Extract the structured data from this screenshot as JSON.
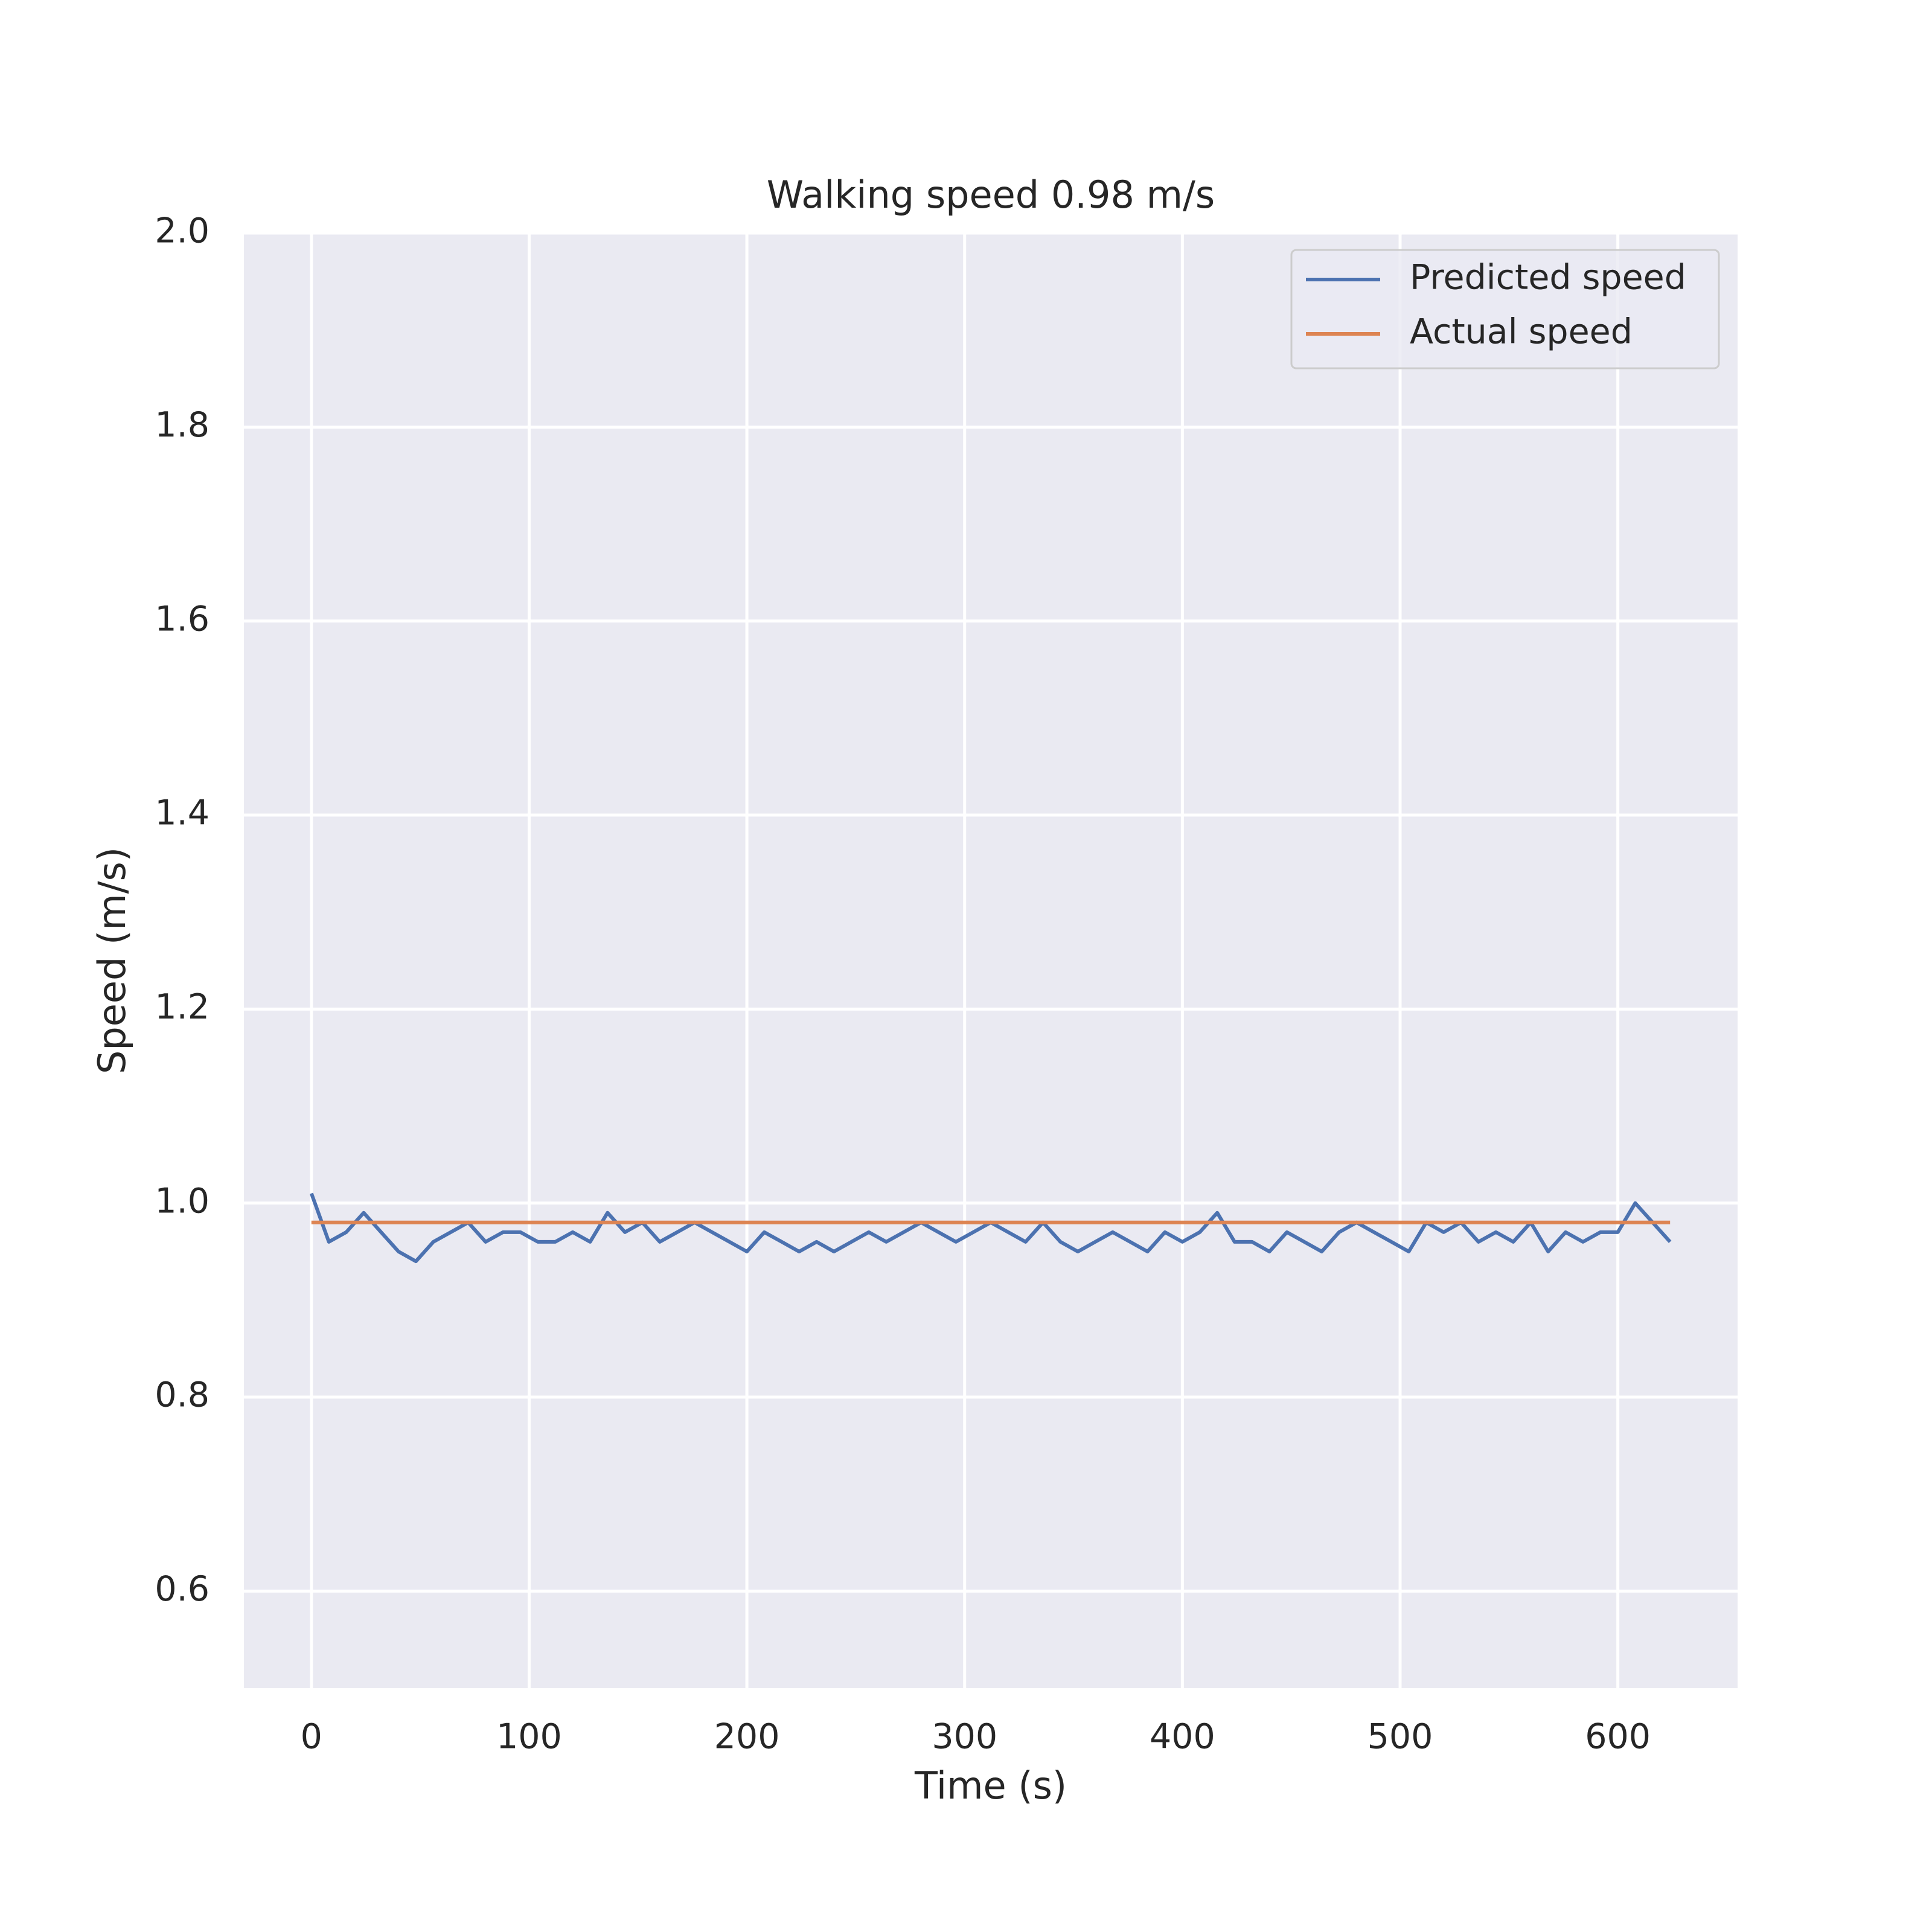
{
  "chart_data": {
    "type": "line",
    "title": "Walking speed 0.98 m/s",
    "xlabel": "Time (s)",
    "ylabel": "Speed (m/s)",
    "x": [
      0,
      8,
      16,
      24,
      32,
      40,
      48,
      56,
      64,
      72,
      80,
      88,
      96,
      104,
      112,
      120,
      128,
      136,
      144,
      152,
      160,
      168,
      176,
      184,
      192,
      200,
      208,
      216,
      224,
      232,
      240,
      248,
      256,
      264,
      272,
      280,
      288,
      296,
      304,
      312,
      320,
      328,
      336,
      344,
      352,
      360,
      368,
      376,
      384,
      392,
      400,
      408,
      416,
      424,
      432,
      440,
      448,
      456,
      464,
      472,
      480,
      488,
      496,
      504,
      512,
      520,
      528,
      536,
      544,
      552,
      560,
      568,
      576,
      584,
      592,
      600,
      608,
      616,
      624
    ],
    "series": [
      {
        "name": "Predicted speed",
        "color": "#4c72b0",
        "values": [
          1.01,
          0.96,
          0.97,
          0.99,
          0.97,
          0.95,
          0.94,
          0.96,
          0.97,
          0.98,
          0.96,
          0.97,
          0.97,
          0.96,
          0.96,
          0.97,
          0.96,
          0.99,
          0.97,
          0.98,
          0.96,
          0.97,
          0.98,
          0.97,
          0.96,
          0.95,
          0.97,
          0.96,
          0.95,
          0.96,
          0.95,
          0.96,
          0.97,
          0.96,
          0.97,
          0.98,
          0.97,
          0.96,
          0.97,
          0.98,
          0.97,
          0.96,
          0.98,
          0.96,
          0.95,
          0.96,
          0.97,
          0.96,
          0.95,
          0.97,
          0.96,
          0.97,
          0.99,
          0.96,
          0.96,
          0.95,
          0.97,
          0.96,
          0.95,
          0.97,
          0.98,
          0.97,
          0.96,
          0.95,
          0.98,
          0.97,
          0.98,
          0.96,
          0.97,
          0.96,
          0.98,
          0.95,
          0.97,
          0.96,
          0.97,
          0.97,
          1.0,
          0.98,
          0.96
        ]
      },
      {
        "name": "Actual speed",
        "color": "#dd8452",
        "values": [
          0.98,
          0.98,
          0.98,
          0.98,
          0.98,
          0.98,
          0.98,
          0.98,
          0.98,
          0.98,
          0.98,
          0.98,
          0.98,
          0.98,
          0.98,
          0.98,
          0.98,
          0.98,
          0.98,
          0.98,
          0.98,
          0.98,
          0.98,
          0.98,
          0.98,
          0.98,
          0.98,
          0.98,
          0.98,
          0.98,
          0.98,
          0.98,
          0.98,
          0.98,
          0.98,
          0.98,
          0.98,
          0.98,
          0.98,
          0.98,
          0.98,
          0.98,
          0.98,
          0.98,
          0.98,
          0.98,
          0.98,
          0.98,
          0.98,
          0.98,
          0.98,
          0.98,
          0.98,
          0.98,
          0.98,
          0.98,
          0.98,
          0.98,
          0.98,
          0.98,
          0.98,
          0.98,
          0.98,
          0.98,
          0.98,
          0.98,
          0.98,
          0.98,
          0.98,
          0.98,
          0.98,
          0.98,
          0.98,
          0.98,
          0.98,
          0.98,
          0.98,
          0.98,
          0.98
        ]
      }
    ],
    "xlim": [
      -31,
      655
    ],
    "ylim": [
      0.5,
      2.0
    ],
    "xticks": [
      0,
      100,
      200,
      300,
      400,
      500,
      600
    ],
    "yticks": [
      0.6,
      0.8,
      {
        "value": 1,
        "label": "1.0"
      },
      1.2,
      1.4,
      1.6,
      1.8,
      {
        "value": 2,
        "label": "2.0"
      }
    ],
    "grid": true,
    "legend": "upper right"
  }
}
